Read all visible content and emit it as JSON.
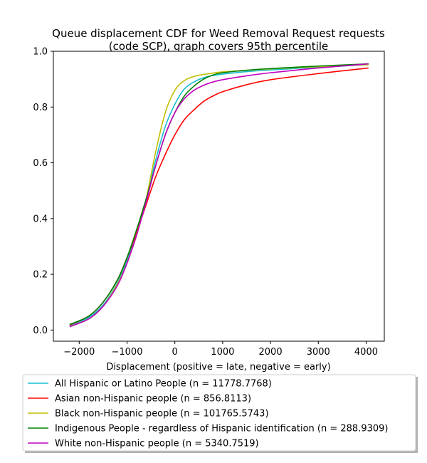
{
  "chart_data": {
    "type": "line",
    "title": "Queue displacement CDF for Weed Removal Request  requests (code SCP), graph covers 95th percentile",
    "title_lines": [
      "Queue displacement CDF for Weed Removal Request  requests",
      "(code SCP), graph covers 95th percentile"
    ],
    "xlabel": "Displacement (positive = late, negative = early)",
    "ylabel": "",
    "xlim": [
      -2540,
      4380
    ],
    "ylim": [
      -0.04,
      1.0
    ],
    "xticks": [
      -2000,
      -1000,
      0,
      1000,
      2000,
      3000,
      4000
    ],
    "yticks": [
      0.0,
      0.2,
      0.4,
      0.6,
      0.8,
      1.0
    ],
    "legend_position": "below-plot",
    "grid": false,
    "series": [
      {
        "name": "All Hispanic or Latino People (n = 11778.7768)",
        "color": "#17becf",
        "x": [
          -2200,
          -1800,
          -1500,
          -1200,
          -1000,
          -800,
          -600,
          -400,
          -200,
          0,
          200,
          400,
          600,
          800,
          1000,
          1500,
          2000,
          3000,
          4050
        ],
        "y": [
          0.015,
          0.045,
          0.09,
          0.17,
          0.25,
          0.35,
          0.47,
          0.61,
          0.73,
          0.81,
          0.865,
          0.89,
          0.905,
          0.913,
          0.918,
          0.927,
          0.933,
          0.943,
          0.952
        ]
      },
      {
        "name": "Asian non-Hispanic people (n = 856.8113)",
        "color": "#ff0000",
        "x": [
          -2200,
          -1800,
          -1500,
          -1200,
          -1000,
          -800,
          -600,
          -400,
          -200,
          0,
          200,
          400,
          600,
          800,
          1000,
          1500,
          2000,
          3000,
          4050
        ],
        "y": [
          0.018,
          0.05,
          0.1,
          0.18,
          0.26,
          0.35,
          0.45,
          0.55,
          0.63,
          0.7,
          0.755,
          0.79,
          0.82,
          0.84,
          0.855,
          0.88,
          0.898,
          0.92,
          0.94
        ]
      },
      {
        "name": "Black non-Hispanic people (n = 101765.5743)",
        "color": "#bfbf00",
        "x": [
          -2200,
          -1800,
          -1500,
          -1200,
          -1000,
          -800,
          -600,
          -400,
          -200,
          0,
          200,
          400,
          600,
          800,
          1000,
          1500,
          2000,
          3000,
          4050
        ],
        "y": [
          0.012,
          0.04,
          0.085,
          0.165,
          0.24,
          0.34,
          0.47,
          0.64,
          0.78,
          0.86,
          0.895,
          0.91,
          0.917,
          0.922,
          0.926,
          0.932,
          0.937,
          0.945,
          0.952
        ]
      },
      {
        "name": "Indigenous People - regardless of Hispanic identification (n = 288.9309)",
        "color": "#008000",
        "x": [
          -2200,
          -1800,
          -1500,
          -1200,
          -1000,
          -800,
          -600,
          -400,
          -200,
          0,
          200,
          400,
          600,
          800,
          1000,
          1500,
          2000,
          3000,
          4050
        ],
        "y": [
          0.02,
          0.05,
          0.1,
          0.18,
          0.26,
          0.36,
          0.47,
          0.59,
          0.7,
          0.78,
          0.84,
          0.875,
          0.9,
          0.915,
          0.923,
          0.932,
          0.938,
          0.947,
          0.955
        ]
      },
      {
        "name": "White non-Hispanic people (n = 5340.7519)",
        "color": "#bf00bf",
        "x": [
          -2200,
          -1800,
          -1500,
          -1200,
          -1000,
          -800,
          -600,
          -400,
          -200,
          0,
          200,
          400,
          600,
          800,
          1000,
          1500,
          2000,
          3000,
          4050
        ],
        "y": [
          0.012,
          0.04,
          0.085,
          0.16,
          0.24,
          0.34,
          0.46,
          0.59,
          0.7,
          0.78,
          0.83,
          0.86,
          0.878,
          0.89,
          0.898,
          0.912,
          0.923,
          0.94,
          0.955
        ]
      }
    ]
  }
}
